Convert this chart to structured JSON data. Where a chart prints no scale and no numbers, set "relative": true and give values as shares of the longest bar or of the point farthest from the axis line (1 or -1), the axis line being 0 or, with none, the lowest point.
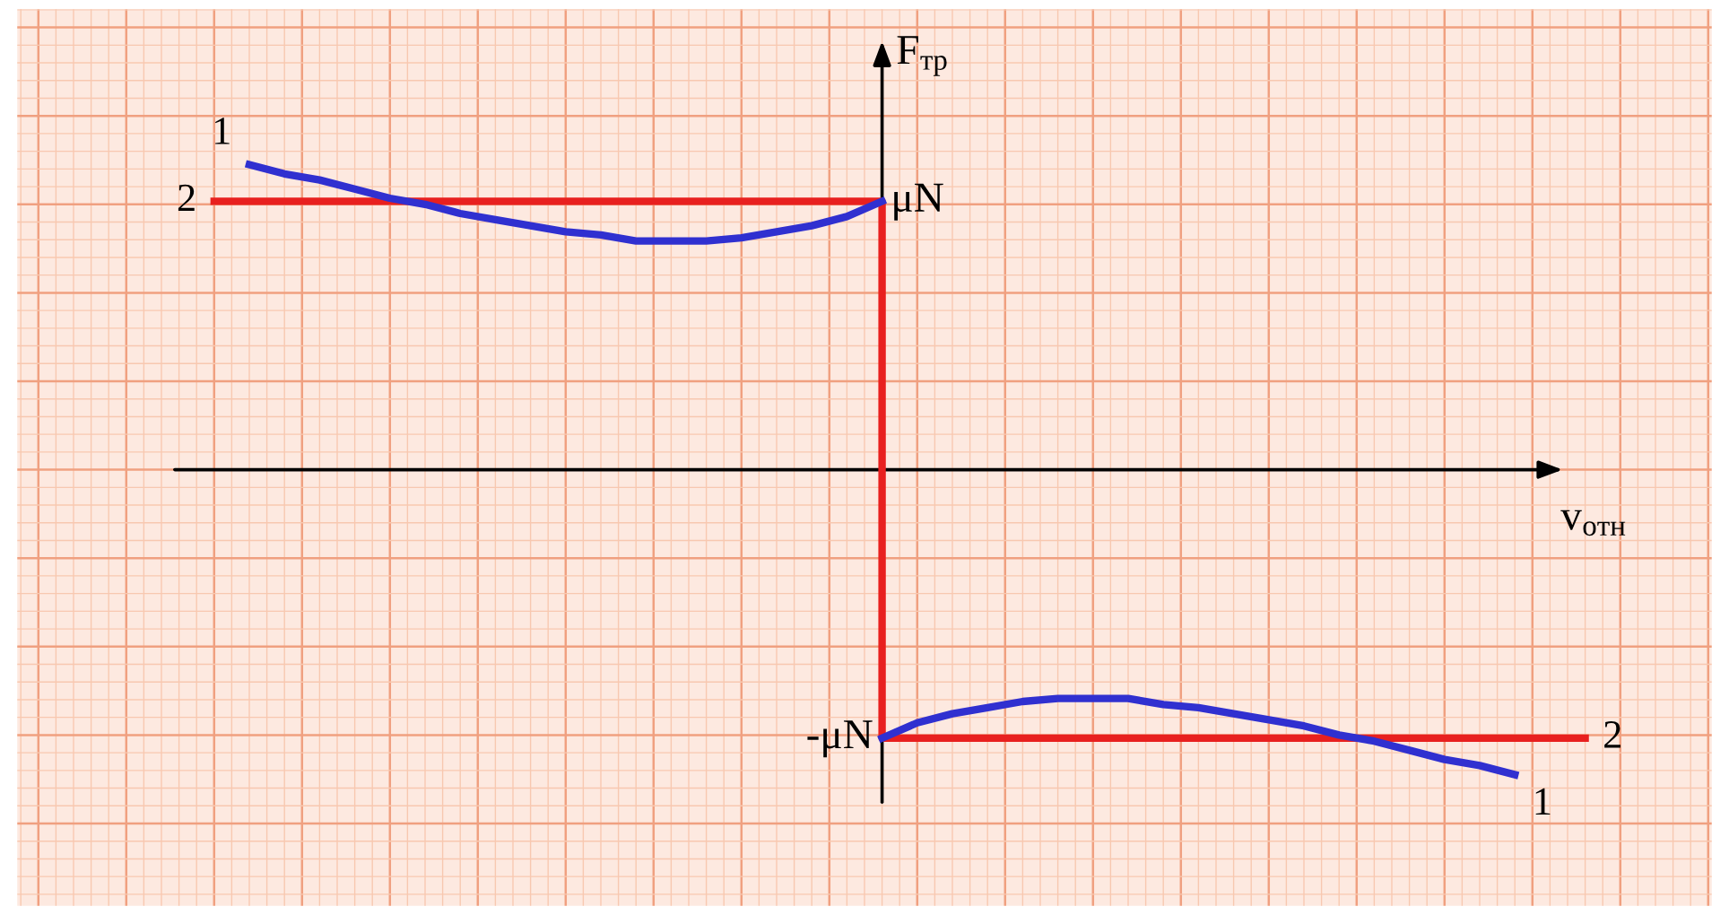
{
  "chart_data": {
    "type": "line",
    "xlabel": "v$_{отн}$",
    "ylabel": "F$_{тр}$",
    "categories": [
      null,
      null,
      null,
      null,
      null,
      null,
      null,
      null,
      null,
      null,
      null,
      null,
      null,
      null,
      null,
      null,
      null,
      null,
      null,
      null,
      null,
      null,
      null,
      null,
      null,
      null,
      null,
      null,
      null,
      null,
      null,
      null,
      null,
      null,
      null,
      null,
      null,
      null,
      null,
      null
    ],
    "relative": true,
    "annotations": [
      "μN",
      "-μN"
    ],
    "grid": true,
    "marker": "none",
    "line_style": "solid",
    "series": [
      {
        "name": "2",
        "type": "step",
        "color": "#e8201f",
        "values": [
          0.88,
          0.88,
          0.88,
          0.88,
          0.88,
          0.88,
          0.88,
          0.88,
          0.88,
          0.88,
          0.88,
          0.88,
          0.88,
          0.88,
          0.88,
          0.88,
          0.88,
          0.88,
          0.88,
          0.88,
          -0.88,
          -0.88,
          -0.88,
          -0.88,
          -0.88,
          -0.88,
          -0.88,
          -0.88,
          -0.88,
          -0.88,
          -0.88,
          -0.88,
          -0.88,
          -0.88,
          -0.88,
          -0.88,
          -0.88,
          -0.88,
          -0.88,
          -0.88
        ]
      },
      {
        "name": "1",
        "color": "#3030d0",
        "values": [
          null,
          1,
          0.97,
          0.95,
          0.92,
          0.89,
          0.87,
          0.84,
          0.82,
          0.8,
          0.78,
          0.77,
          0.75,
          0.75,
          0.75,
          0.76,
          0.78,
          0.8,
          0.83,
          0.88,
          null,
          null,
          null,
          null,
          null,
          null,
          null,
          null,
          null,
          null,
          null,
          null,
          null,
          null,
          null,
          null,
          null,
          null,
          null,
          null
        ]
      },
      {
        "name": "1",
        "color": "#3030d0",
        "values": [
          null,
          null,
          null,
          null,
          null,
          null,
          null,
          null,
          null,
          null,
          null,
          null,
          null,
          null,
          null,
          null,
          null,
          null,
          null,
          -0.88,
          -0.83,
          -0.8,
          -0.78,
          -0.76,
          -0.75,
          -0.75,
          -0.75,
          -0.77,
          -0.78,
          -0.8,
          -0.82,
          -0.84,
          -0.87,
          -0.89,
          -0.92,
          -0.95,
          -0.97,
          -1,
          null,
          null
        ]
      }
    ]
  }
}
